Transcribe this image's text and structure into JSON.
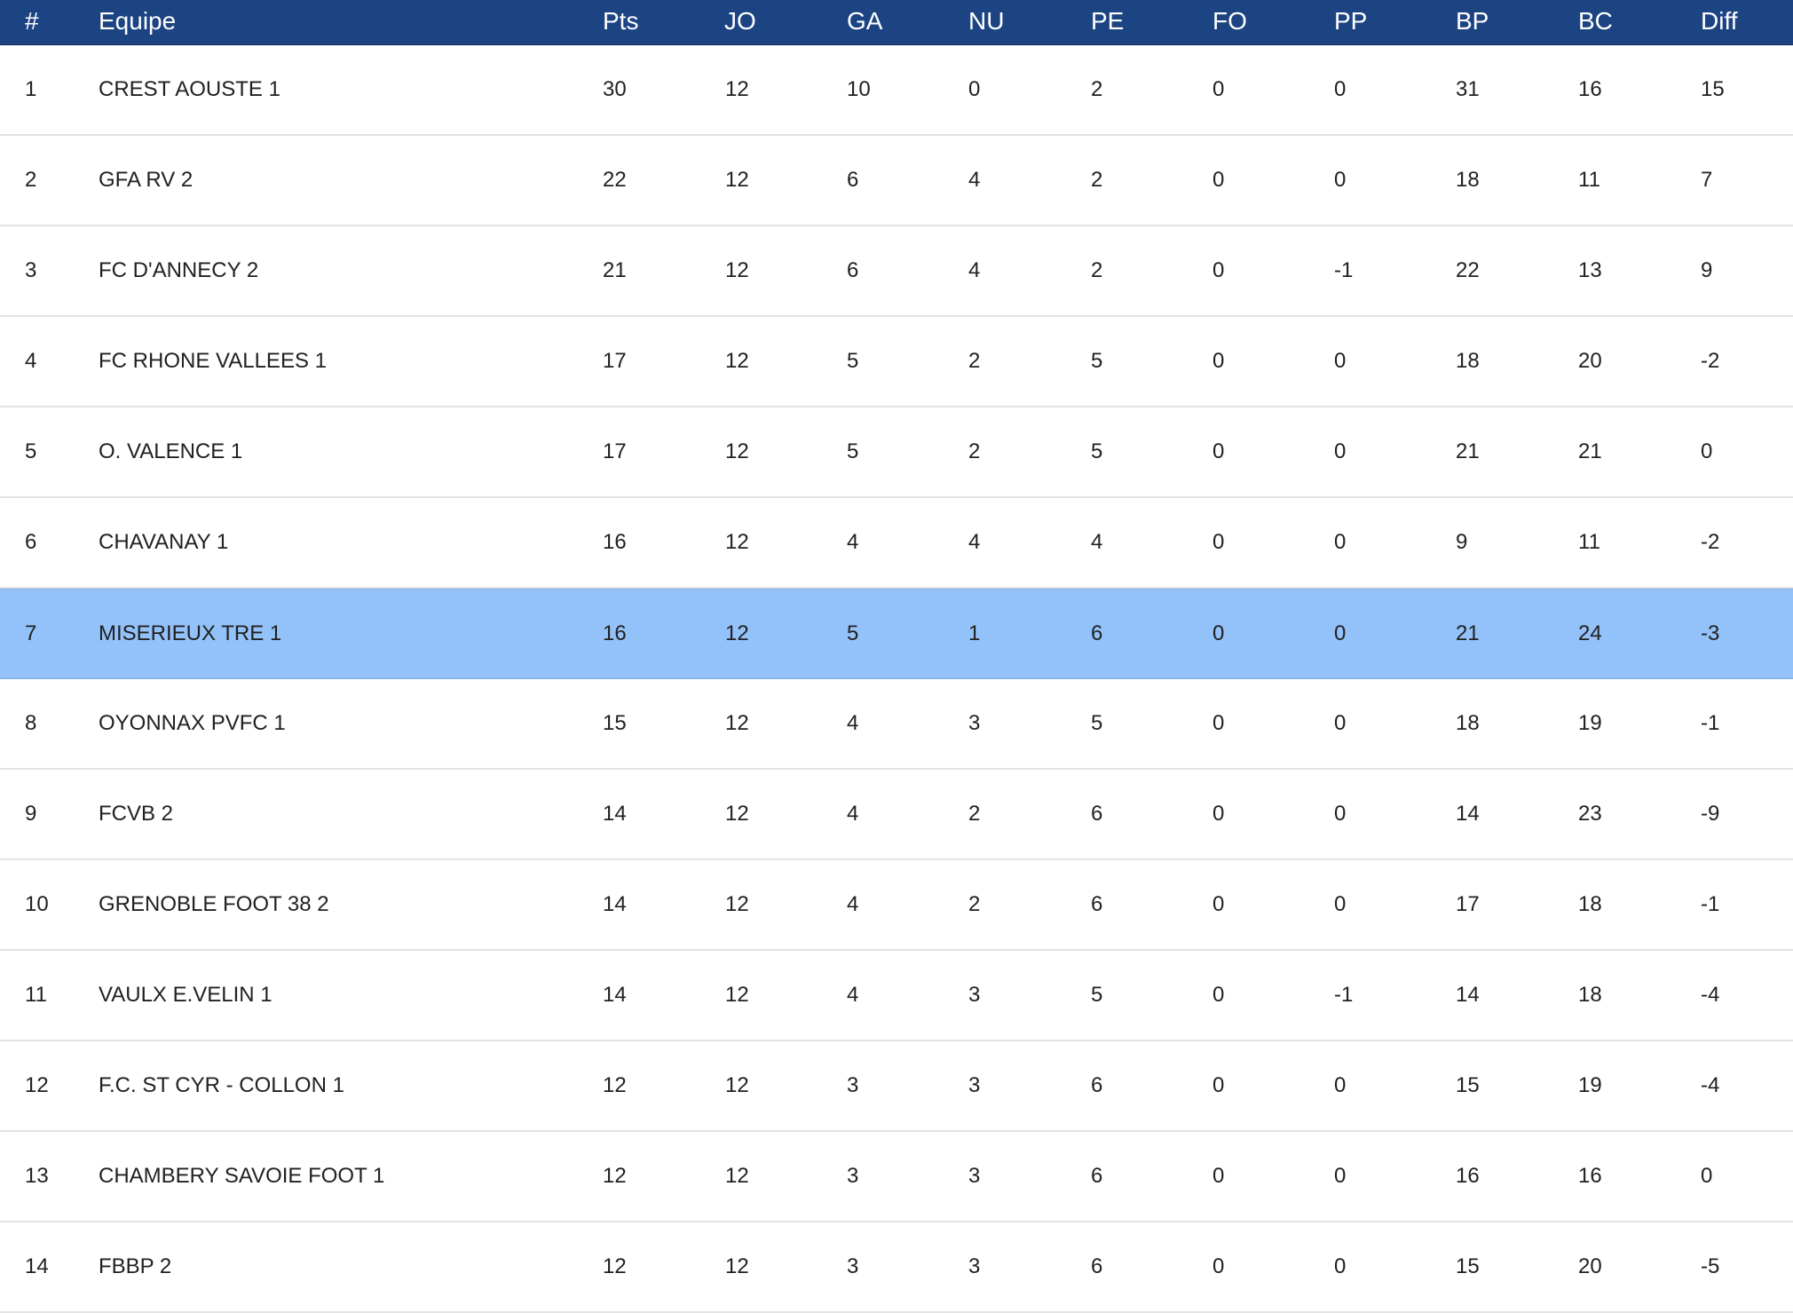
{
  "table": {
    "headers": [
      "#",
      "Equipe",
      "Pts",
      "JO",
      "GA",
      "NU",
      "PE",
      "FO",
      "PP",
      "BP",
      "BC",
      "Diff"
    ],
    "highlight_color": "#93c1f9",
    "header_color": "#1c4483",
    "rows": [
      [
        "1",
        "CREST AOUSTE 1",
        "30",
        "12",
        "10",
        "0",
        "2",
        "0",
        "0",
        "31",
        "16",
        "15"
      ],
      [
        "2",
        "GFA RV 2",
        "22",
        "12",
        "6",
        "4",
        "2",
        "0",
        "0",
        "18",
        "11",
        "7"
      ],
      [
        "3",
        "FC D'ANNECY 2",
        "21",
        "12",
        "6",
        "4",
        "2",
        "0",
        "-1",
        "22",
        "13",
        "9"
      ],
      [
        "4",
        "FC RHONE VALLEES 1",
        "17",
        "12",
        "5",
        "2",
        "5",
        "0",
        "0",
        "18",
        "20",
        "-2"
      ],
      [
        "5",
        "O. VALENCE 1",
        "17",
        "12",
        "5",
        "2",
        "5",
        "0",
        "0",
        "21",
        "21",
        "0"
      ],
      [
        "6",
        "CHAVANAY 1",
        "16",
        "12",
        "4",
        "4",
        "4",
        "0",
        "0",
        "9",
        "11",
        "-2"
      ],
      [
        "7",
        "MISERIEUX TRE 1",
        "16",
        "12",
        "5",
        "1",
        "6",
        "0",
        "0",
        "21",
        "24",
        "-3"
      ],
      [
        "8",
        "OYONNAX PVFC 1",
        "15",
        "12",
        "4",
        "3",
        "5",
        "0",
        "0",
        "18",
        "19",
        "-1"
      ],
      [
        "9",
        "FCVB 2",
        "14",
        "12",
        "4",
        "2",
        "6",
        "0",
        "0",
        "14",
        "23",
        "-9"
      ],
      [
        "10",
        "GRENOBLE FOOT 38 2",
        "14",
        "12",
        "4",
        "2",
        "6",
        "0",
        "0",
        "17",
        "18",
        "-1"
      ],
      [
        "11",
        "VAULX E.VELIN 1",
        "14",
        "12",
        "4",
        "3",
        "5",
        "0",
        "-1",
        "14",
        "18",
        "-4"
      ],
      [
        "12",
        "F.C. ST CYR - COLLON 1",
        "12",
        "12",
        "3",
        "3",
        "6",
        "0",
        "0",
        "15",
        "19",
        "-4"
      ],
      [
        "13",
        "CHAMBERY SAVOIE FOOT 1",
        "12",
        "12",
        "3",
        "3",
        "6",
        "0",
        "0",
        "16",
        "16",
        "0"
      ],
      [
        "14",
        "FBBP 2",
        "12",
        "12",
        "3",
        "3",
        "6",
        "0",
        "0",
        "15",
        "20",
        "-5"
      ]
    ]
  }
}
